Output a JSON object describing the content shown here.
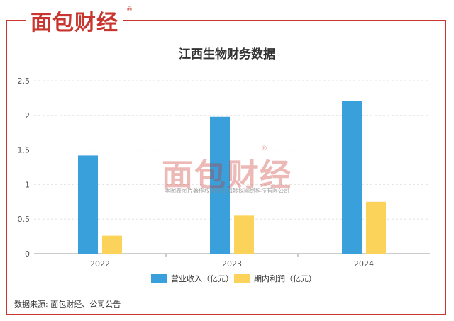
{
  "brand": {
    "logo_text": "面包财经",
    "reg_mark": "®",
    "color": "#c9362f"
  },
  "watermark": {
    "logo_text": "面包财经",
    "reg_mark": "®",
    "caption": "本图表图片著作权属于上海耖探网络科技有限公司"
  },
  "footer": {
    "source": "数据来源: 面包财经、公司公告"
  },
  "chart_data": {
    "type": "bar",
    "title": "江西生物财务数据",
    "categories": [
      "2022",
      "2023",
      "2024"
    ],
    "series": [
      {
        "name": "营业收入（亿元）",
        "color": "#3aa0dc",
        "values": [
          1.42,
          1.98,
          2.21
        ]
      },
      {
        "name": "期内利润（亿元）",
        "color": "#fcd35a",
        "values": [
          0.26,
          0.55,
          0.75
        ]
      }
    ],
    "ylim": [
      0,
      2.5
    ],
    "yticks": [
      "0",
      "0.5",
      "1",
      "1.5",
      "2",
      "2.5"
    ],
    "ytick_values": [
      0,
      0.5,
      1,
      1.5,
      2,
      2.5
    ],
    "grid": true,
    "legend_position": "bottom",
    "xlabel": "",
    "ylabel": ""
  }
}
